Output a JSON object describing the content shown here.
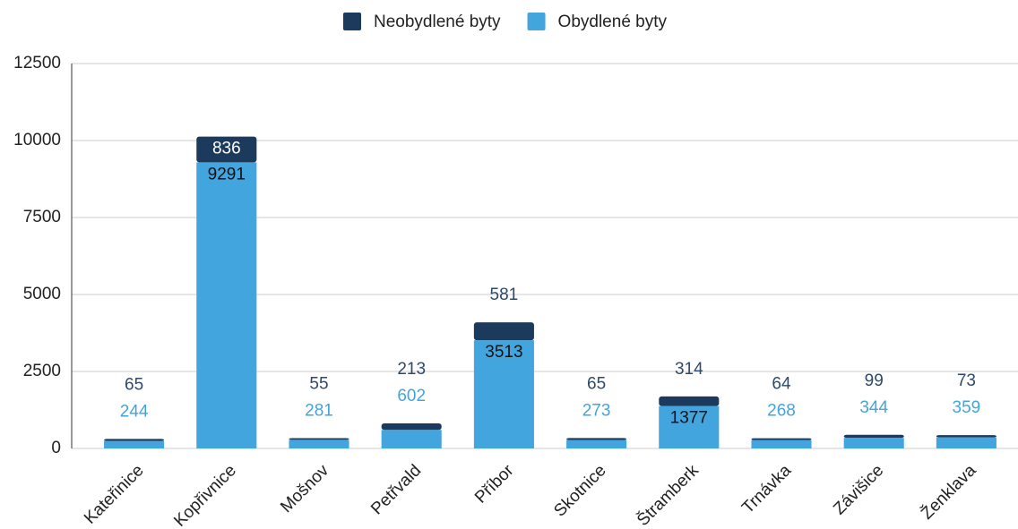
{
  "chart_data": {
    "type": "stacked_bar",
    "categories": [
      "Kateřinice",
      "Kopřivnice",
      "Mošnov",
      "Petřvald",
      "Příbor",
      "Skotnice",
      "Štramberk",
      "Trnávka",
      "Závišice",
      "Ženklava"
    ],
    "series": [
      {
        "name": "Obydlené byty",
        "color": "#43a5de",
        "values": [
          244,
          9291,
          281,
          602,
          3513,
          273,
          1377,
          268,
          344,
          359
        ]
      },
      {
        "name": "Neobydlené byty",
        "color": "#1b3a5c",
        "values": [
          65,
          836,
          55,
          213,
          581,
          65,
          314,
          64,
          99,
          73
        ]
      }
    ],
    "ylim": [
      0,
      12500
    ],
    "yticks": [
      0,
      2500,
      5000,
      7500,
      10000,
      12500
    ],
    "grid": true,
    "legend": "top"
  }
}
